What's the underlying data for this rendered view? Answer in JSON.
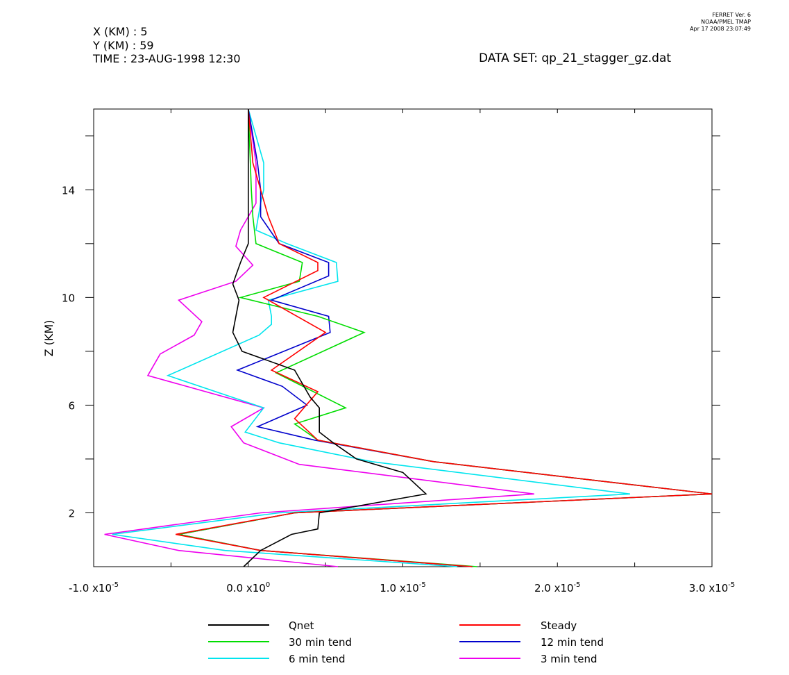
{
  "header": {
    "x_line": "X (KM) : 5",
    "y_line": "Y (KM) : 59",
    "time_line": "TIME : 23-AUG-1998 12:30",
    "dataset": "DATA SET: qp_21_stagger_gz.dat",
    "ferret_version": "FERRET Ver. 6",
    "ferret_org": "NOAA/PMEL TMAP",
    "ferret_date": "Apr 17 2008 23:07:49"
  },
  "chart_data": {
    "type": "line",
    "orientation": "vertical-profile",
    "title": "",
    "xlabel": "",
    "ylabel": "Z (KM)",
    "xlim": [
      -1e-05,
      3e-05
    ],
    "ylim": [
      0.0,
      17.0
    ],
    "x_ticks": [
      -1e-05,
      0.0,
      1e-05,
      2e-05,
      3e-05
    ],
    "x_tick_labels": [
      {
        "mant": "-1.0",
        "exp": "-5"
      },
      {
        "mant": "0.0",
        "exp": "0"
      },
      {
        "mant": "1.0",
        "exp": "-5"
      },
      {
        "mant": "2.0",
        "exp": "-5"
      },
      {
        "mant": "3.0",
        "exp": "-5"
      }
    ],
    "x_minor_ticks": [
      -5e-06,
      5e-06,
      1.5e-05,
      2.5e-05
    ],
    "y_ticks": [
      2,
      6,
      10,
      14
    ],
    "y_tick_labels": [
      "2",
      "6",
      "10",
      "14"
    ],
    "y_minor_ticks": [
      4,
      8,
      12,
      16
    ],
    "grid": false,
    "legend_position": "bottom",
    "series": [
      {
        "name": "Qnet",
        "color": "#000000",
        "x": [
          -3e-07,
          8e-07,
          2.8e-06,
          4.5e-06,
          4.6e-06,
          1.15e-05,
          1e-05,
          7e-06,
          5.5e-06,
          4.6e-06,
          4.6e-06,
          4e-06,
          3e-06,
          -4e-07,
          -1e-06,
          -6e-07,
          -1e-06,
          -5e-07,
          0.0,
          0.0,
          0.0,
          0.0,
          0.0
        ],
        "z": [
          0.0,
          0.6,
          1.2,
          1.4,
          2.0,
          2.7,
          3.5,
          4.0,
          4.6,
          5.0,
          5.9,
          6.3,
          7.3,
          8.0,
          8.7,
          9.9,
          10.5,
          11.3,
          12.0,
          13.0,
          14.0,
          15.0,
          17.0
        ]
      }
    ],
    "series_more": [
      {
        "name": "Steady",
        "color": "#ff0000",
        "x": [
          1.45e-05,
          8e-07,
          -4.7e-06,
          3e-06,
          3e-05,
          1.2e-05,
          4.5e-06,
          3e-06,
          4.5e-06,
          1.5e-06,
          5e-06,
          1e-06,
          4.5e-06,
          4.5e-06,
          2e-06,
          1.3e-06,
          8e-07,
          3e-07,
          0.0
        ],
        "z": [
          0.0,
          0.6,
          1.2,
          2.0,
          2.7,
          3.9,
          4.7,
          5.5,
          6.5,
          7.3,
          8.7,
          10.0,
          11.0,
          11.3,
          12.0,
          13.0,
          14.0,
          15.0,
          17.0
        ]
      },
      {
        "name": "30 min tend",
        "color": "#00dd00",
        "x": [
          1.48e-05,
          8e-07,
          -4.5e-06,
          3e-06,
          3e-05,
          1.2e-05,
          4.5e-06,
          3e-06,
          6.3e-06,
          1.8e-06,
          7.5e-06,
          4.5e-06,
          -5e-07,
          3.3e-06,
          3.5e-06,
          5e-07,
          3e-07,
          2e-07,
          0.0
        ],
        "z": [
          0.0,
          0.6,
          1.2,
          2.0,
          2.7,
          3.9,
          4.7,
          5.3,
          5.9,
          7.2,
          8.7,
          9.3,
          10.0,
          10.6,
          11.3,
          12.0,
          13.0,
          14.0,
          17.0
        ]
      },
      {
        "name": "12 min tend",
        "color": "#0000cc",
        "x": [
          1.45e-05,
          8e-07,
          -4.5e-06,
          3e-06,
          3e-05,
          1.2e-05,
          4.3e-06,
          6e-07,
          3.8e-06,
          2.2e-06,
          -7e-07,
          5.3e-06,
          5.2e-06,
          1.5e-06,
          5.2e-06,
          5.2e-06,
          2e-06,
          8e-07,
          8e-07,
          6e-07,
          0.0
        ],
        "z": [
          0.0,
          0.6,
          1.2,
          2.0,
          2.7,
          3.9,
          4.7,
          5.2,
          6.0,
          6.7,
          7.3,
          8.7,
          9.3,
          9.9,
          10.8,
          11.3,
          12.0,
          13.0,
          14.0,
          15.0,
          17.0
        ]
      },
      {
        "name": "6 min tend",
        "color": "#00e5ee",
        "x": [
          1.35e-05,
          -1.5e-06,
          -8.8e-06,
          2e-06,
          2.47e-05,
          8e-06,
          2e-06,
          -2e-07,
          1e-06,
          -5.2e-06,
          7e-07,
          1.5e-06,
          1.5e-06,
          1.3e-06,
          5.8e-06,
          5.7e-06,
          2.5e-06,
          5e-07,
          8e-07,
          1e-06,
          1e-06,
          0.0
        ],
        "z": [
          0.0,
          0.6,
          1.2,
          2.0,
          2.7,
          3.9,
          4.6,
          5.0,
          5.9,
          7.1,
          8.6,
          9.0,
          9.3,
          9.9,
          10.6,
          11.3,
          12.0,
          12.5,
          13.5,
          14.0,
          15.0,
          17.0
        ]
      },
      {
        "name": "3 min tend",
        "color": "#ee00ee",
        "x": [
          5.8e-06,
          -4.5e-06,
          -9.3e-06,
          8e-07,
          1.85e-05,
          3.3e-06,
          -3e-07,
          -1.1e-06,
          1e-06,
          -6.5e-06,
          -5.7e-06,
          -3.5e-06,
          -3e-06,
          -4.5e-06,
          -8e-07,
          3e-07,
          -8e-07,
          -5e-07,
          5e-07,
          5e-07,
          0.0
        ],
        "z": [
          0.0,
          0.6,
          1.2,
          2.0,
          2.7,
          3.8,
          4.6,
          5.2,
          5.9,
          7.1,
          7.9,
          8.6,
          9.1,
          9.9,
          10.6,
          11.2,
          11.9,
          12.5,
          13.5,
          15.0,
          17.0
        ]
      }
    ]
  },
  "legend": {
    "rows": [
      [
        {
          "label": "Qnet",
          "color": "#000000"
        },
        {
          "label": "Steady",
          "color": "#ff0000"
        }
      ],
      [
        {
          "label": "30 min tend",
          "color": "#00dd00"
        },
        {
          "label": "12 min tend",
          "color": "#0000cc"
        }
      ],
      [
        {
          "label": "6 min tend",
          "color": "#00e5ee"
        },
        {
          "label": "3 min tend",
          "color": "#ee00ee"
        }
      ]
    ]
  }
}
